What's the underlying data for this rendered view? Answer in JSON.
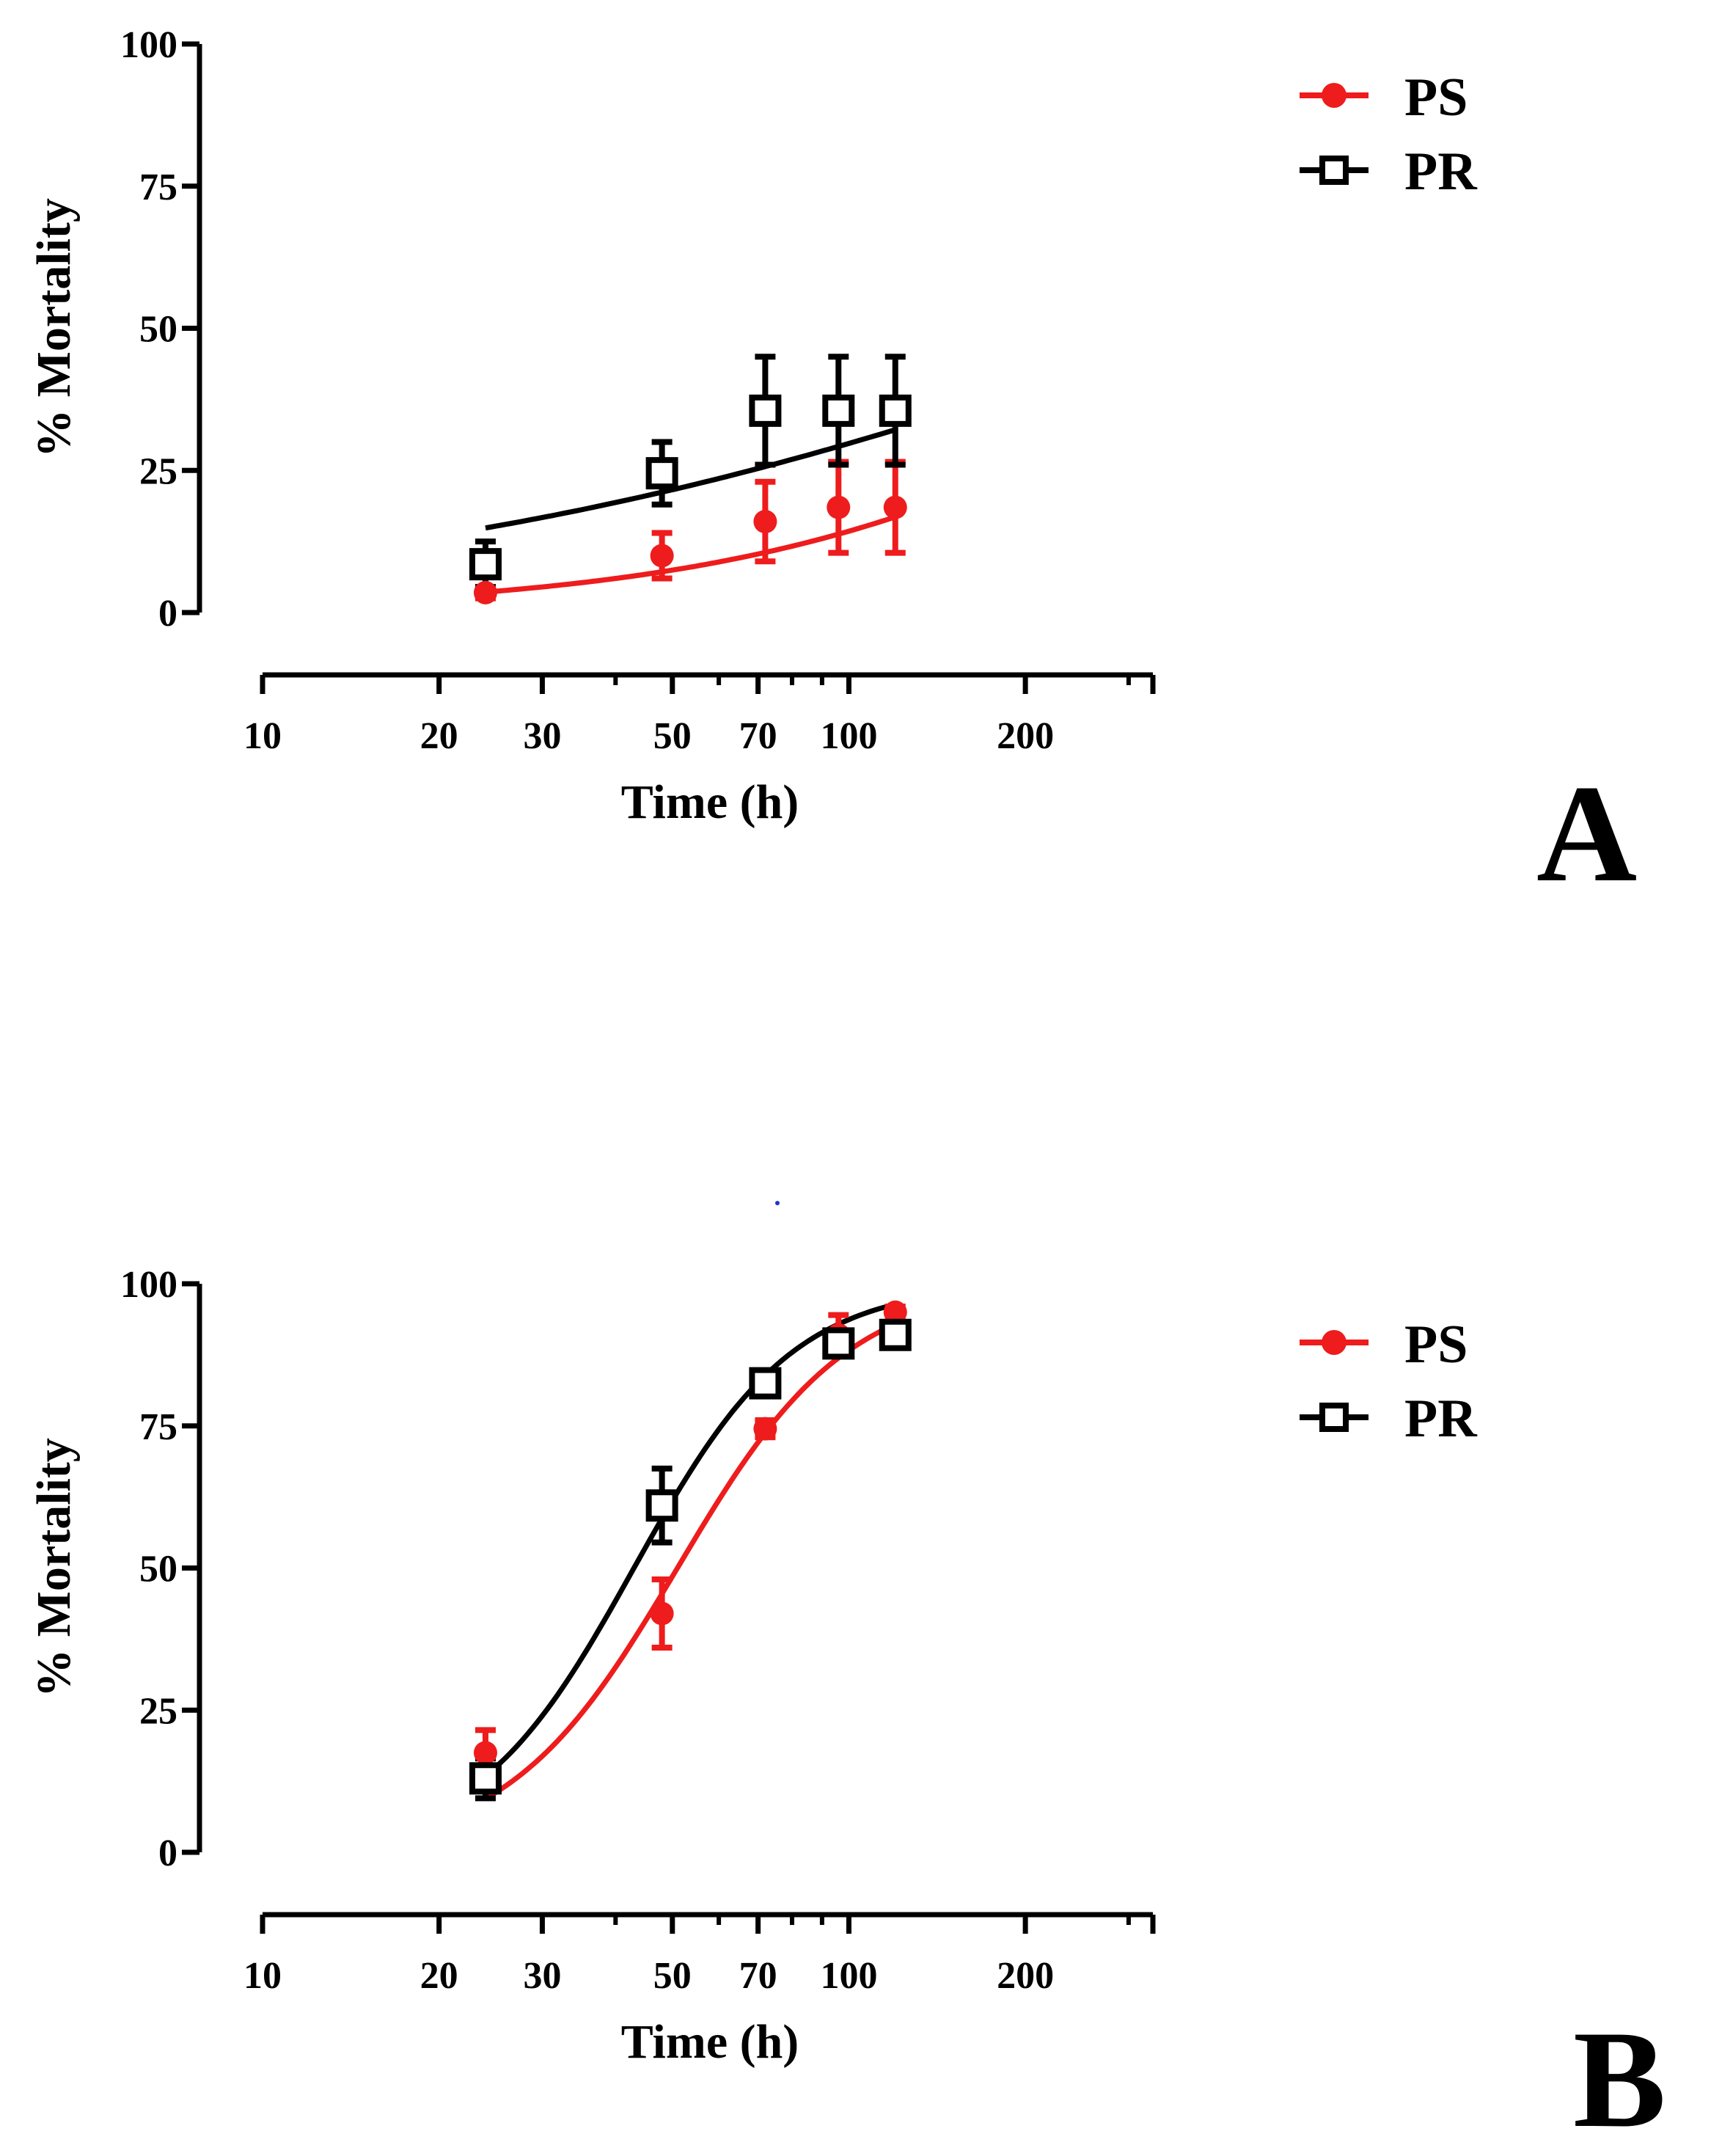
{
  "chart_data": [
    {
      "panel": "A",
      "type": "scatter",
      "xlabel": "Time (h)",
      "ylabel": "% Mortality",
      "xscale": "log",
      "xlim": [
        10,
        330
      ],
      "ylim": [
        0,
        100
      ],
      "xticks": [
        10,
        20,
        30,
        50,
        70,
        100,
        200
      ],
      "xtick_labels": [
        "10",
        "20",
        "30",
        "50",
        "70",
        "100",
        "200"
      ],
      "yticks": [
        0,
        25,
        50,
        75,
        100
      ],
      "ytick_labels": [
        "0",
        "25",
        "50",
        "75",
        "100"
      ],
      "legend": {
        "placement": "top-right",
        "entries": [
          "PS",
          "PR"
        ]
      },
      "series": [
        {
          "name": "PS",
          "color": "#ee1c1c",
          "marker": "filled-circle",
          "x": [
            24,
            48,
            72,
            96,
            120
          ],
          "y": [
            3.5,
            10,
            16,
            18.5,
            18.5
          ],
          "err": [
            1,
            4,
            7,
            8,
            8
          ],
          "fit": {
            "slope": 1.05,
            "mid": 550
          }
        },
        {
          "name": "PR",
          "color": "#000000",
          "marker": "open-square",
          "x": [
            24,
            48,
            72,
            96,
            120
          ],
          "y": [
            8.5,
            24.5,
            35.5,
            35.5,
            35.5
          ],
          "err": [
            4,
            5.5,
            9.5,
            9.5,
            9.5
          ],
          "fit": {
            "slope": 0.62,
            "mid": 400
          }
        }
      ],
      "panel_letter": "A"
    },
    {
      "panel": "B",
      "type": "scatter",
      "xlabel": "Time (h)",
      "ylabel": "% Mortality",
      "xscale": "log",
      "xlim": [
        10,
        330
      ],
      "ylim": [
        0,
        100
      ],
      "xticks": [
        10,
        20,
        30,
        50,
        70,
        100,
        200
      ],
      "xtick_labels": [
        "10",
        "20",
        "30",
        "50",
        "70",
        "100",
        "200"
      ],
      "yticks": [
        0,
        25,
        50,
        75,
        100
      ],
      "ytick_labels": [
        "0",
        "25",
        "50",
        "75",
        "100"
      ],
      "legend": {
        "placement": "top-right",
        "entries": [
          "PS",
          "PR"
        ]
      },
      "series": [
        {
          "name": "PS",
          "color": "#ee1c1c",
          "marker": "filled-circle",
          "x": [
            24,
            48,
            72,
            96,
            120
          ],
          "y": [
            17.5,
            42,
            74.5,
            91,
            95
          ],
          "err": [
            4,
            6,
            1.5,
            3.5,
            1
          ],
          "fit": {
            "slope": 3.0,
            "mid": 51
          }
        },
        {
          "name": "PR",
          "color": "#000000",
          "marker": "open-square",
          "x": [
            24,
            48,
            72,
            96,
            120
          ],
          "y": [
            13,
            61,
            82.5,
            89.5,
            91
          ],
          "err": [
            3.5,
            6.5,
            2,
            2,
            1.5
          ],
          "fit": {
            "slope": 3.2,
            "mid": 43
          }
        }
      ],
      "panel_letter": "B"
    }
  ]
}
